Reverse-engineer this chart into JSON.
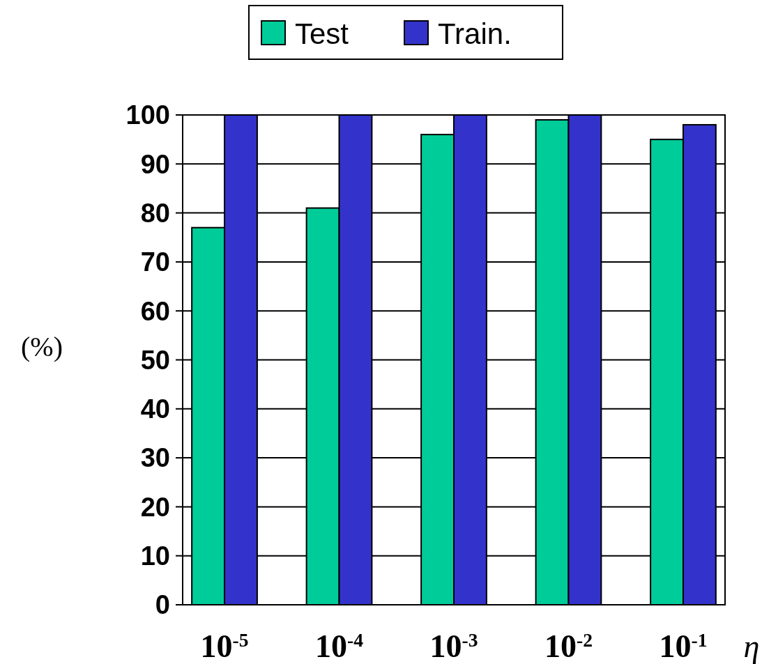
{
  "chart_data": {
    "type": "bar",
    "xlabel": "η",
    "ylabel": "(%)",
    "categories": [
      "10$^{-5}$",
      "10$^{-4}$",
      "10$^{-3}$",
      "10$^{-2}$",
      "10$^{-1}$"
    ],
    "series": [
      {
        "name": "Test",
        "color": "#00cc99",
        "values": [
          77,
          81,
          96,
          99,
          95
        ]
      },
      {
        "name": "Train.",
        "color": "#3333cc",
        "values": [
          100,
          100,
          100,
          100,
          98
        ]
      }
    ],
    "ylim": [
      0,
      100
    ],
    "yticks": [
      0,
      10,
      20,
      30,
      40,
      50,
      60,
      70,
      80,
      90,
      100
    ],
    "grid": "y",
    "legend": "top"
  }
}
